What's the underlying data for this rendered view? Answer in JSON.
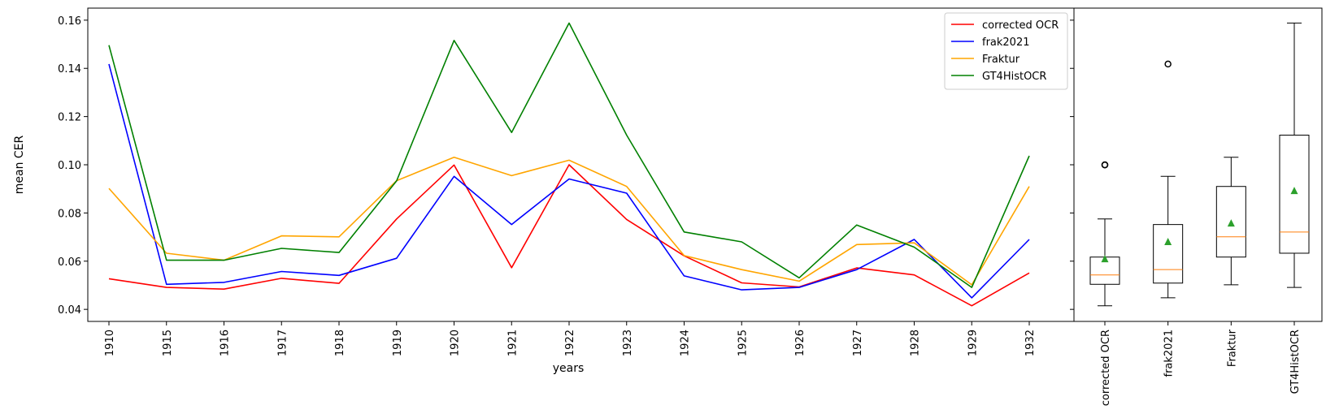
{
  "chart_data": [
    {
      "type": "line",
      "xlabel": "years",
      "ylabel": "mean CER",
      "categories": [
        "1910",
        "1915",
        "1916",
        "1917",
        "1918",
        "1919",
        "1920",
        "1921",
        "1922",
        "1923",
        "1924",
        "1925",
        "1926",
        "1927",
        "1928",
        "1929",
        "1932"
      ],
      "ylim": [
        0.035,
        0.165
      ],
      "yticks": [
        0.04,
        0.06,
        0.08,
        0.1,
        0.12,
        0.14,
        0.16
      ],
      "ytick_labels": [
        "0.04",
        "0.06",
        "0.08",
        "0.10",
        "0.12",
        "0.14",
        "0.16"
      ],
      "legend_position": "top-right",
      "series": [
        {
          "name": "corrected OCR",
          "color": "#ff0000",
          "values": [
            0.0527,
            0.0491,
            0.0484,
            0.0529,
            0.0508,
            0.0775,
            0.0999,
            0.0573,
            0.1,
            0.0773,
            0.0622,
            0.051,
            0.0493,
            0.0572,
            0.0543,
            0.0415,
            0.0551
          ]
        },
        {
          "name": "frak2021",
          "color": "#0000ff",
          "values": [
            0.1418,
            0.0504,
            0.0512,
            0.0557,
            0.0541,
            0.0612,
            0.0952,
            0.0752,
            0.0941,
            0.0882,
            0.0539,
            0.0481,
            0.0491,
            0.0565,
            0.069,
            0.0448,
            0.069
          ]
        },
        {
          "name": "Fraktur",
          "color": "#ffa500",
          "values": [
            0.0902,
            0.0633,
            0.0604,
            0.0705,
            0.0701,
            0.0934,
            0.1031,
            0.0955,
            0.1019,
            0.091,
            0.0623,
            0.0565,
            0.0517,
            0.0669,
            0.0676,
            0.0502,
            0.091
          ]
        },
        {
          "name": "GT4HistOCR",
          "color": "#008000",
          "values": [
            0.1496,
            0.0604,
            0.0604,
            0.0653,
            0.0636,
            0.0933,
            0.1516,
            0.1134,
            0.1588,
            0.1123,
            0.0721,
            0.068,
            0.0531,
            0.075,
            0.0658,
            0.0491,
            0.1037
          ]
        }
      ]
    },
    {
      "type": "box",
      "categories": [
        "corrected OCR",
        "frak2021",
        "Fraktur",
        "GT4HistOCR"
      ],
      "ylim": [
        0.035,
        0.165
      ],
      "boxes": [
        {
          "min": 0.0415,
          "q1": 0.0504,
          "median": 0.0543,
          "q3": 0.0617,
          "max": 0.0775,
          "mean": 0.0609,
          "fliers": [
            0.0999,
            0.1
          ]
        },
        {
          "min": 0.0448,
          "q1": 0.0509,
          "median": 0.0565,
          "q3": 0.0752,
          "max": 0.0952,
          "mean": 0.068,
          "fliers": [
            0.1418
          ]
        },
        {
          "min": 0.0502,
          "q1": 0.0617,
          "median": 0.0701,
          "q3": 0.091,
          "max": 0.1031,
          "mean": 0.0757,
          "fliers": []
        },
        {
          "min": 0.0491,
          "q1": 0.0633,
          "median": 0.0721,
          "q3": 0.1123,
          "max": 0.1588,
          "mean": 0.0892,
          "fliers": []
        }
      ],
      "colors": {
        "box": "#000000",
        "median": "#ff7f0e",
        "mean": "#2ca02c"
      }
    }
  ]
}
